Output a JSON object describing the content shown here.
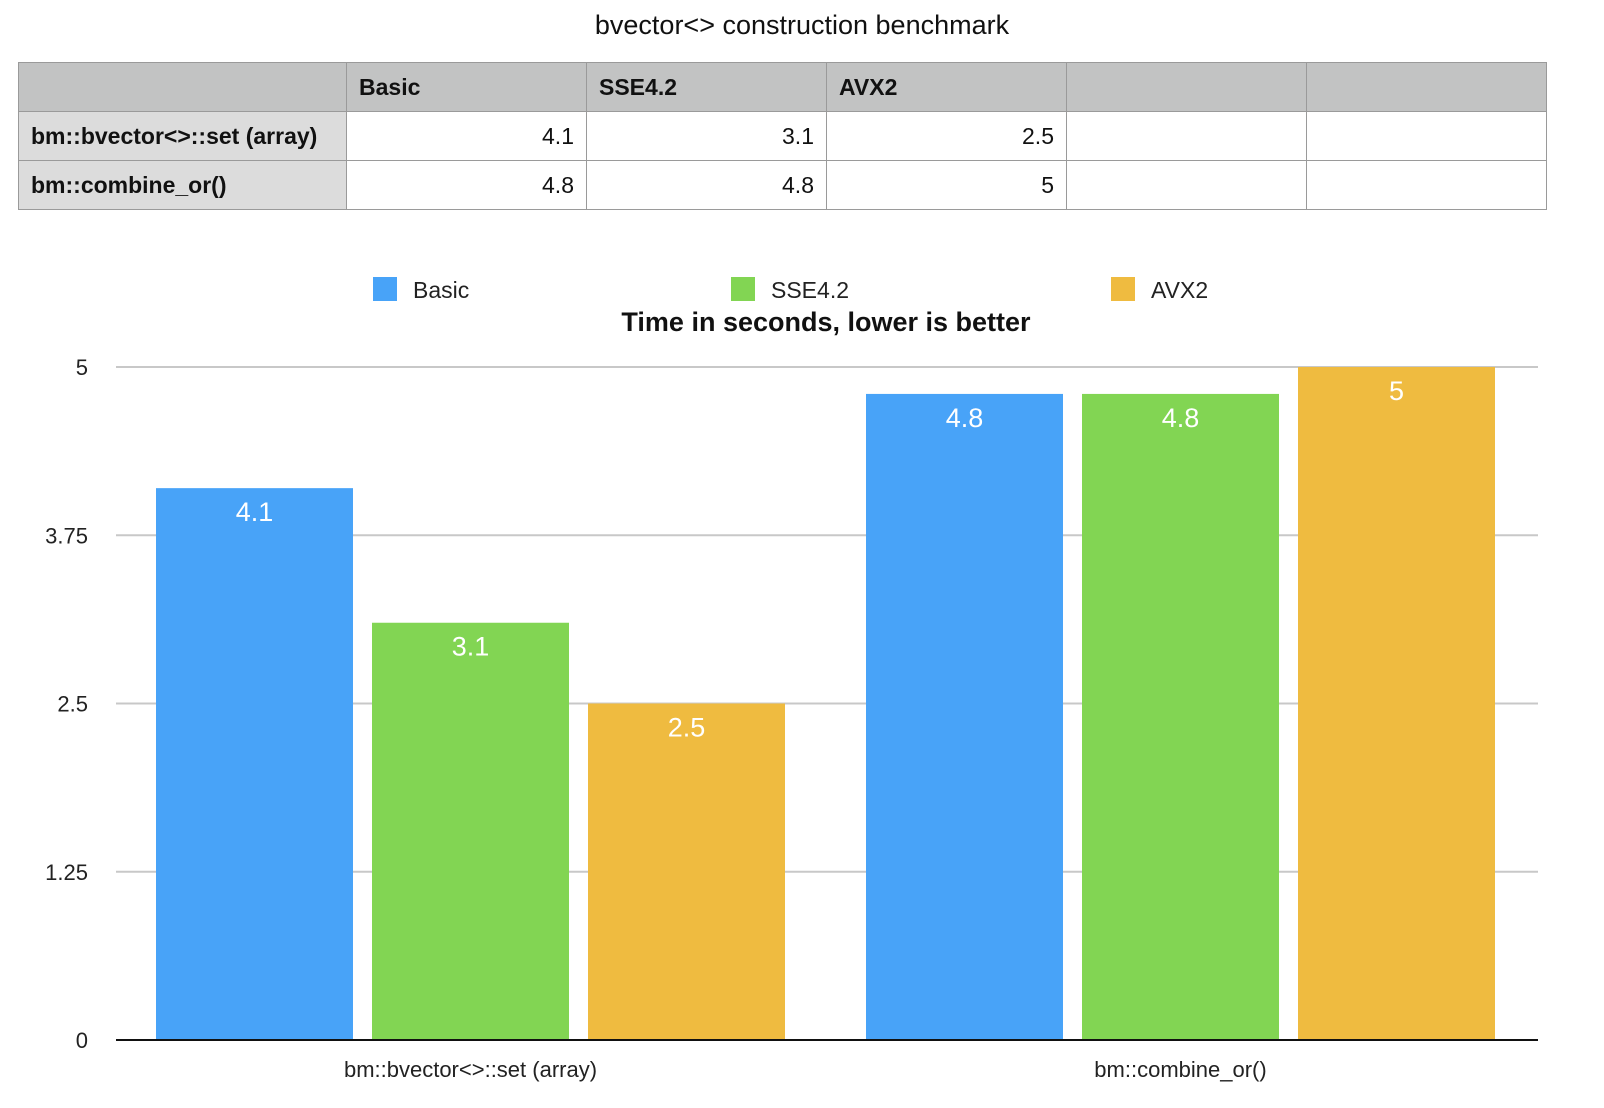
{
  "table": {
    "header": [
      "",
      "Basic",
      "SSE4.2",
      "AVX2",
      "",
      ""
    ],
    "rows": [
      {
        "label": "bm::bvector<>::set (array)",
        "values": [
          "4.1",
          "3.1",
          "2.5",
          "",
          ""
        ]
      },
      {
        "label": "bm::combine_or()",
        "values": [
          "4.8",
          "4.8",
          "5",
          "",
          ""
        ]
      }
    ]
  },
  "chart_data": {
    "type": "bar",
    "title": "bvector<> construction benchmark",
    "subtitle": "Time in seconds, lower is better",
    "categories": [
      "bm::bvector<>::set (array)",
      "bm::combine_or()"
    ],
    "series": [
      {
        "name": "Basic",
        "values": [
          4.1,
          4.8
        ],
        "color": "#48a3f8"
      },
      {
        "name": "SSE4.2",
        "values": [
          3.1,
          4.8
        ],
        "color": "#82d553"
      },
      {
        "name": "AVX2",
        "values": [
          2.5,
          5
        ],
        "color": "#efbb40"
      }
    ],
    "yticks": [
      0,
      1.25,
      2.5,
      3.75,
      5
    ],
    "ytick_labels": [
      "0",
      "1.25",
      "2.5",
      "3.75",
      "5"
    ],
    "ylim": [
      0,
      5
    ],
    "grid": true,
    "legend": "top"
  }
}
